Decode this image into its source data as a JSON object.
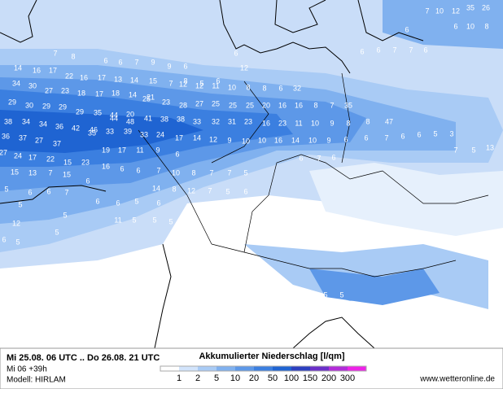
{
  "header": {
    "period": "Mi 25.08. 06 UTC .. Do 26.08. 21 UTC",
    "run": "Mi 06 +39h",
    "model": "Modell: HIRLAM",
    "title": "Akkumulierter Niederschlag [l/qm]",
    "source": "www.wetteronline.de"
  },
  "legend": {
    "ticks": [
      1,
      2,
      5,
      10,
      20,
      50,
      100,
      150,
      200,
      300
    ],
    "colors": [
      "#ffffff",
      "#d2e4fb",
      "#a9cbf5",
      "#80b1ef",
      "#5d98e8",
      "#3b7fe0",
      "#1f64d2",
      "#2c3fc0",
      "#6a2fc8",
      "#b22cd8",
      "#ee22e8"
    ]
  },
  "map_labels": [
    7,
    10,
    12,
    35,
    26,
    6,
    6,
    10,
    8,
    7,
    8,
    6,
    6,
    6,
    7,
    7,
    6,
    6,
    6,
    7,
    9,
    9,
    6,
    14,
    16,
    17,
    22,
    16,
    17,
    13,
    14,
    15,
    7,
    8,
    5,
    6,
    12,
    34,
    30,
    27,
    23,
    18,
    17,
    18,
    14,
    21,
    12,
    12,
    11,
    10,
    8,
    8,
    6,
    32,
    29,
    30,
    29,
    29,
    29,
    35,
    44,
    20,
    25,
    23,
    28,
    27,
    25,
    25,
    25,
    20,
    16,
    16,
    8,
    7,
    35,
    38,
    34,
    34,
    36,
    42,
    46,
    44,
    48,
    41,
    38,
    38,
    33,
    32,
    31,
    23,
    16,
    23,
    11,
    10,
    9,
    8,
    8,
    47,
    36,
    37,
    27,
    37,
    35,
    33,
    39,
    33,
    24,
    17,
    14,
    12,
    9,
    10,
    10,
    16,
    14,
    10,
    9,
    6,
    6,
    7,
    6,
    6,
    5,
    3,
    27,
    24,
    17,
    22,
    15,
    23,
    19,
    17,
    11,
    9,
    6,
    6,
    7,
    6,
    7,
    5,
    13,
    15,
    13,
    7,
    15,
    16,
    6,
    6,
    7,
    10,
    8,
    7,
    7,
    5,
    5,
    6,
    6,
    7,
    6,
    14,
    8,
    12,
    7,
    5,
    6,
    5,
    5,
    6,
    6,
    5,
    6,
    12,
    11,
    5,
    5,
    5,
    5,
    6,
    5,
    5,
    5,
    5
  ]
}
